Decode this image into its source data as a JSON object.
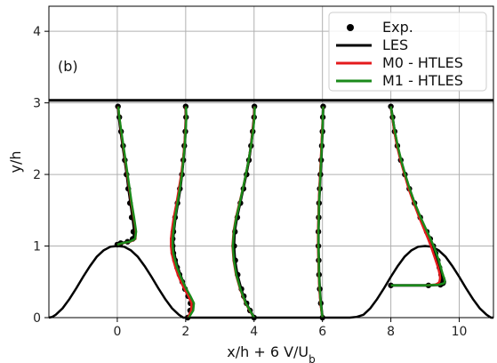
{
  "chart_data": {
    "type": "line",
    "panel_label": "(b)",
    "xlabel": "x/h + 6 V/U_b",
    "ylabel": "y/h",
    "xlim": [
      -2,
      11
    ],
    "ylim": [
      0,
      4.35
    ],
    "xticks": [
      0,
      2,
      4,
      6,
      8,
      10
    ],
    "yticks": [
      0,
      1,
      2,
      3,
      4
    ],
    "grid": true,
    "legend_position": "top-right",
    "top_wall_y": 3.036,
    "hill_profile": {
      "x": [
        -2.0,
        -1.9,
        -1.8,
        -1.6,
        -1.4,
        -1.2,
        -1.0,
        -0.8,
        -0.6,
        -0.4,
        -0.2,
        0.0,
        0.2,
        0.4,
        0.6,
        0.8,
        1.0,
        1.2,
        1.4,
        1.6,
        1.8,
        1.93,
        2.07,
        2.2,
        4.0,
        6.0,
        6.8,
        7.0,
        7.2,
        7.4,
        7.6,
        7.8,
        8.0,
        8.2,
        8.4,
        8.6,
        8.8,
        9.0,
        9.2,
        9.4,
        9.6,
        9.8,
        10.0,
        10.2,
        10.4,
        10.6,
        10.8,
        10.93,
        11.0
      ],
      "y": [
        0.0,
        0.01,
        0.04,
        0.13,
        0.26,
        0.41,
        0.57,
        0.72,
        0.85,
        0.94,
        0.99,
        1.0,
        0.99,
        0.94,
        0.85,
        0.72,
        0.57,
        0.41,
        0.26,
        0.13,
        0.04,
        0.0,
        0.0,
        0.0,
        0.0,
        0.0,
        0.0,
        0.01,
        0.04,
        0.13,
        0.26,
        0.41,
        0.57,
        0.72,
        0.85,
        0.94,
        0.99,
        1.0,
        0.99,
        0.94,
        0.85,
        0.72,
        0.57,
        0.41,
        0.26,
        0.13,
        0.04,
        0.0,
        0.0
      ]
    },
    "series": [
      {
        "name": "Exp.",
        "kind": "markers",
        "color": "#000000"
      },
      {
        "name": "LES",
        "kind": "line",
        "color": "#000000"
      },
      {
        "name": "M0 - HTLES",
        "kind": "line",
        "color": "#e41a1c"
      },
      {
        "name": "M1 - HTLES",
        "kind": "line",
        "color": "#1a8a1a"
      }
    ],
    "profiles": [
      {
        "station": 0,
        "y": [
          1.02,
          1.04,
          1.06,
          1.1,
          1.2,
          1.4,
          1.6,
          1.8,
          2.0,
          2.2,
          2.4,
          2.6,
          2.8,
          2.95
        ],
        "exp": [
          0.0,
          0.1,
          0.3,
          0.45,
          0.47,
          0.42,
          0.37,
          0.32,
          0.27,
          0.22,
          0.17,
          0.11,
          0.06,
          0.02
        ],
        "les": [
          0.0,
          0.12,
          0.33,
          0.48,
          0.5,
          0.45,
          0.39,
          0.33,
          0.28,
          0.22,
          0.16,
          0.1,
          0.05,
          0.02
        ],
        "m0": [
          0.0,
          0.15,
          0.38,
          0.53,
          0.54,
          0.48,
          0.41,
          0.35,
          0.29,
          0.23,
          0.17,
          0.11,
          0.06,
          0.02
        ],
        "m1": [
          0.0,
          0.14,
          0.36,
          0.52,
          0.55,
          0.49,
          0.42,
          0.36,
          0.3,
          0.24,
          0.18,
          0.12,
          0.06,
          0.03
        ]
      },
      {
        "station": 2,
        "y": [
          0.0,
          0.1,
          0.2,
          0.3,
          0.4,
          0.5,
          0.6,
          0.7,
          0.8,
          0.9,
          1.0,
          1.1,
          1.2,
          1.4,
          1.6,
          1.8,
          2.0,
          2.2,
          2.4,
          2.6,
          2.8,
          2.95
        ],
        "exp": [
          0.06,
          0.13,
          0.14,
          0.07,
          -0.02,
          -0.1,
          -0.18,
          -0.25,
          -0.31,
          -0.36,
          -0.38,
          -0.38,
          -0.36,
          -0.31,
          -0.24,
          -0.17,
          -0.11,
          -0.07,
          -0.04,
          -0.01,
          0.01,
          0.0
        ],
        "les": [
          0.08,
          0.17,
          0.18,
          0.1,
          0.0,
          -0.08,
          -0.16,
          -0.23,
          -0.29,
          -0.34,
          -0.36,
          -0.37,
          -0.35,
          -0.3,
          -0.23,
          -0.16,
          -0.11,
          -0.07,
          -0.03,
          -0.01,
          0.01,
          0.0
        ],
        "m0": [
          0.07,
          0.16,
          0.17,
          0.08,
          -0.04,
          -0.14,
          -0.23,
          -0.3,
          -0.36,
          -0.41,
          -0.43,
          -0.43,
          -0.41,
          -0.35,
          -0.27,
          -0.2,
          -0.13,
          -0.08,
          -0.04,
          -0.01,
          0.01,
          0.0
        ],
        "m1": [
          0.09,
          0.22,
          0.24,
          0.14,
          0.02,
          -0.08,
          -0.17,
          -0.25,
          -0.31,
          -0.36,
          -0.38,
          -0.38,
          -0.36,
          -0.31,
          -0.24,
          -0.17,
          -0.11,
          -0.07,
          -0.03,
          0.0,
          0.02,
          0.01
        ]
      },
      {
        "station": 4,
        "y": [
          0.0,
          0.1,
          0.2,
          0.3,
          0.4,
          0.6,
          0.8,
          1.0,
          1.2,
          1.4,
          1.6,
          1.8,
          2.0,
          2.2,
          2.4,
          2.6,
          2.8,
          2.95
        ],
        "exp": [
          0.0,
          -0.12,
          -0.22,
          -0.3,
          -0.37,
          -0.48,
          -0.55,
          -0.58,
          -0.56,
          -0.49,
          -0.4,
          -0.31,
          -0.22,
          -0.15,
          -0.09,
          -0.04,
          0.0,
          0.01
        ],
        "les": [
          0.0,
          -0.12,
          -0.23,
          -0.31,
          -0.38,
          -0.49,
          -0.56,
          -0.59,
          -0.57,
          -0.5,
          -0.41,
          -0.32,
          -0.23,
          -0.15,
          -0.09,
          -0.04,
          0.0,
          0.01
        ],
        "m0": [
          0.0,
          -0.13,
          -0.25,
          -0.33,
          -0.41,
          -0.53,
          -0.6,
          -0.63,
          -0.6,
          -0.53,
          -0.43,
          -0.33,
          -0.24,
          -0.16,
          -0.09,
          -0.04,
          0.0,
          0.01
        ],
        "m1": [
          0.0,
          -0.12,
          -0.24,
          -0.32,
          -0.4,
          -0.52,
          -0.59,
          -0.62,
          -0.59,
          -0.52,
          -0.42,
          -0.33,
          -0.24,
          -0.16,
          -0.09,
          -0.03,
          0.01,
          0.02
        ]
      },
      {
        "station": 6,
        "y": [
          0.0,
          0.2,
          0.4,
          0.6,
          0.8,
          1.0,
          1.2,
          1.4,
          1.6,
          1.8,
          2.0,
          2.2,
          2.4,
          2.6,
          2.8,
          2.95
        ],
        "exp": [
          0.0,
          -0.05,
          -0.08,
          -0.1,
          -0.11,
          -0.12,
          -0.12,
          -0.11,
          -0.1,
          -0.08,
          -0.06,
          -0.04,
          -0.02,
          0.0,
          0.01,
          0.02
        ],
        "les": [
          0.0,
          -0.05,
          -0.08,
          -0.1,
          -0.11,
          -0.12,
          -0.12,
          -0.11,
          -0.1,
          -0.08,
          -0.06,
          -0.04,
          -0.02,
          0.0,
          0.01,
          0.02
        ],
        "m0": [
          0.0,
          -0.06,
          -0.09,
          -0.11,
          -0.12,
          -0.13,
          -0.13,
          -0.12,
          -0.11,
          -0.09,
          -0.07,
          -0.05,
          -0.03,
          -0.01,
          0.01,
          0.02
        ],
        "m1": [
          0.0,
          -0.05,
          -0.08,
          -0.1,
          -0.11,
          -0.12,
          -0.12,
          -0.11,
          -0.1,
          -0.08,
          -0.06,
          -0.04,
          -0.02,
          0.0,
          0.01,
          0.02
        ]
      },
      {
        "station": 8,
        "y": [
          0.45,
          0.45,
          0.46,
          0.48,
          0.5,
          0.55,
          0.6,
          0.7,
          0.8,
          0.9,
          1.0,
          1.1,
          1.2,
          1.4,
          1.6,
          1.8,
          2.0,
          2.2,
          2.4,
          2.6,
          2.8,
          2.95
        ],
        "exp": [
          0.0,
          1.1,
          1.45,
          1.52,
          1.52,
          1.5,
          1.47,
          1.42,
          1.37,
          1.31,
          1.24,
          1.15,
          1.05,
          0.86,
          0.69,
          0.54,
          0.41,
          0.29,
          0.19,
          0.11,
          0.05,
          0.0
        ],
        "les": [
          0.0,
          1.05,
          1.45,
          1.57,
          1.58,
          1.55,
          1.5,
          1.44,
          1.38,
          1.31,
          1.24,
          1.15,
          1.05,
          0.86,
          0.69,
          0.54,
          0.41,
          0.29,
          0.19,
          0.11,
          0.05,
          0.0
        ],
        "m0": [
          0.0,
          1.0,
          1.3,
          1.38,
          1.42,
          1.44,
          1.43,
          1.38,
          1.31,
          1.24,
          1.17,
          1.09,
          1.0,
          0.83,
          0.67,
          0.52,
          0.4,
          0.28,
          0.18,
          0.1,
          0.04,
          0.0
        ],
        "m1": [
          0.0,
          1.0,
          1.4,
          1.55,
          1.58,
          1.56,
          1.52,
          1.46,
          1.4,
          1.33,
          1.25,
          1.16,
          1.06,
          0.87,
          0.7,
          0.55,
          0.42,
          0.3,
          0.2,
          0.12,
          0.05,
          0.0
        ]
      }
    ]
  }
}
